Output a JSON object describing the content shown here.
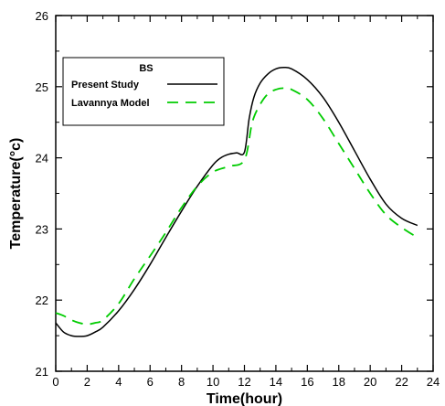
{
  "chart_data": {
    "type": "line",
    "xlabel": "Time(hour)",
    "ylabel": "Temperature(°c)",
    "xlim": [
      0,
      24
    ],
    "ylim": [
      21,
      26
    ],
    "xticks": [
      0,
      2,
      4,
      6,
      8,
      10,
      12,
      14,
      16,
      18,
      20,
      22,
      24
    ],
    "yticks": [
      21,
      22,
      23,
      24,
      25,
      26
    ],
    "grid": false,
    "legend": {
      "title": "BS",
      "placement": "top-left"
    },
    "series": [
      {
        "name": "Present Study",
        "style": "solid",
        "color": "#000000",
        "x": [
          0,
          0.5,
          1,
          1.5,
          2,
          2.5,
          3,
          4,
          5,
          6,
          7,
          8,
          9,
          10,
          10.5,
          11,
          11.5,
          12,
          12.3,
          12.6,
          13,
          13.5,
          14,
          14.5,
          15,
          16,
          17,
          18,
          19,
          20,
          21,
          22,
          23
        ],
        "y": [
          21.68,
          21.55,
          21.5,
          21.49,
          21.5,
          21.55,
          21.62,
          21.85,
          22.15,
          22.5,
          22.88,
          23.25,
          23.6,
          23.9,
          24.0,
          24.05,
          24.07,
          24.08,
          24.55,
          24.85,
          25.05,
          25.18,
          25.25,
          25.27,
          25.25,
          25.1,
          24.85,
          24.5,
          24.1,
          23.7,
          23.35,
          23.15,
          23.05
        ]
      },
      {
        "name": "Lavannya Model",
        "style": "dashed",
        "color": "#00cc00",
        "x": [
          0,
          0.5,
          1,
          1.5,
          2,
          2.5,
          3,
          4,
          5,
          6,
          7,
          8,
          9,
          10,
          11,
          12,
          12.5,
          13,
          13.5,
          14,
          14.5,
          15,
          16,
          17,
          18,
          19,
          20,
          21,
          22,
          23
        ],
        "y": [
          21.82,
          21.78,
          21.72,
          21.68,
          21.66,
          21.68,
          21.72,
          21.95,
          22.3,
          22.62,
          22.95,
          23.3,
          23.6,
          23.8,
          23.88,
          23.97,
          24.5,
          24.75,
          24.9,
          24.96,
          24.98,
          24.96,
          24.82,
          24.55,
          24.2,
          23.85,
          23.5,
          23.2,
          23.02,
          22.88
        ]
      }
    ]
  }
}
